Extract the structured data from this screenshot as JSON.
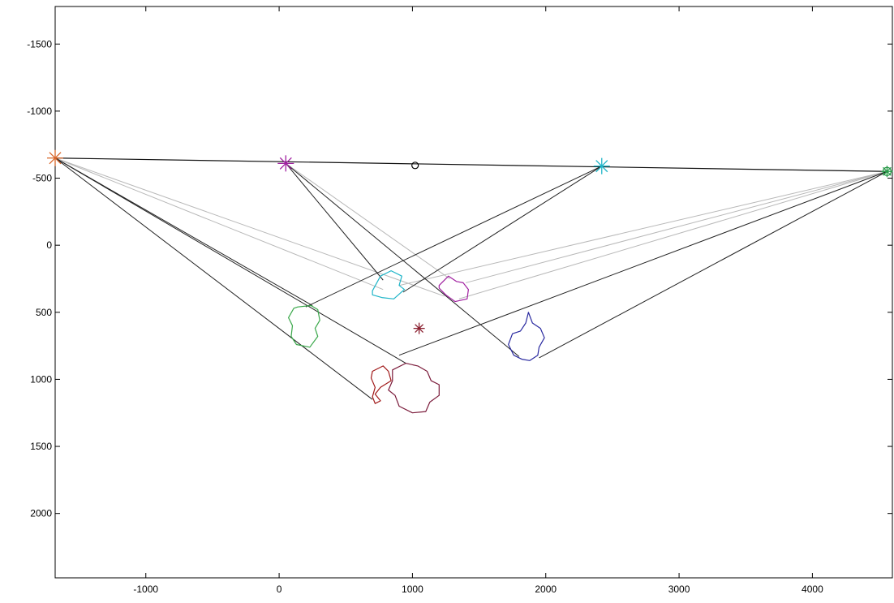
{
  "chart_data": {
    "type": "line",
    "title": "",
    "xlabel": "",
    "ylabel": "",
    "xlim": [
      -1680,
      4600
    ],
    "ylim": [
      -1780,
      2480
    ],
    "y_reversed": true,
    "grid": false,
    "legend": "none",
    "x_ticks": [
      -1000,
      0,
      1000,
      2000,
      3000,
      4000
    ],
    "y_ticks": [
      -1500,
      -1000,
      -500,
      0,
      500,
      1000,
      1500,
      2000
    ],
    "x_tick_labels": [
      "-1000",
      "0",
      "1000",
      "2000",
      "3000",
      "4000"
    ],
    "y_tick_labels": [
      "-1500",
      "-1000",
      "-500",
      "0",
      "500",
      "1000",
      "1500",
      "2000"
    ],
    "baseline": [
      [
        -1680,
        -650
      ],
      [
        4560,
        -550
      ]
    ],
    "markers": [
      {
        "name": "cam1",
        "x": -1680,
        "y": -650,
        "symbol": "star",
        "color": "#d9662a"
      },
      {
        "name": "cam2",
        "x": 50,
        "y": -610,
        "symbol": "star",
        "color": "#a020a0"
      },
      {
        "name": "cam3",
        "x": 2420,
        "y": -590,
        "symbol": "star",
        "color": "#1fb5c8"
      },
      {
        "name": "cam4",
        "x": 4560,
        "y": -550,
        "symbol": "circle-star",
        "color": "#2a9a4a"
      },
      {
        "name": "center",
        "x": 1020,
        "y": -595,
        "symbol": "circle",
        "color": "#000000"
      },
      {
        "name": "object",
        "x": 1050,
        "y": 620,
        "symbol": "star",
        "color": "#8a2030"
      }
    ],
    "silhouettes": [
      {
        "name": "green",
        "color": "#3aa84a",
        "points": [
          [
            140,
            460
          ],
          [
            240,
            450
          ],
          [
            290,
            480
          ],
          [
            305,
            560
          ],
          [
            270,
            620
          ],
          [
            290,
            680
          ],
          [
            230,
            760
          ],
          [
            130,
            740
          ],
          [
            90,
            680
          ],
          [
            100,
            600
          ],
          [
            70,
            540
          ],
          [
            110,
            470
          ]
        ]
      },
      {
        "name": "cyan",
        "color": "#1fb5c8",
        "points": [
          [
            700,
            340
          ],
          [
            760,
            230
          ],
          [
            840,
            190
          ],
          [
            920,
            230
          ],
          [
            900,
            300
          ],
          [
            940,
            330
          ],
          [
            860,
            400
          ],
          [
            770,
            390
          ],
          [
            700,
            370
          ]
        ]
      },
      {
        "name": "magenta",
        "color": "#a020a0",
        "points": [
          [
            1200,
            300
          ],
          [
            1270,
            230
          ],
          [
            1330,
            270
          ],
          [
            1380,
            280
          ],
          [
            1420,
            330
          ],
          [
            1410,
            400
          ],
          [
            1320,
            420
          ],
          [
            1250,
            370
          ],
          [
            1200,
            320
          ]
        ]
      },
      {
        "name": "blue",
        "color": "#2a2aa0",
        "points": [
          [
            1870,
            500
          ],
          [
            1900,
            580
          ],
          [
            1960,
            620
          ],
          [
            1990,
            690
          ],
          [
            1950,
            760
          ],
          [
            1940,
            820
          ],
          [
            1880,
            860
          ],
          [
            1820,
            850
          ],
          [
            1760,
            820
          ],
          [
            1720,
            740
          ],
          [
            1750,
            660
          ],
          [
            1810,
            640
          ],
          [
            1850,
            580
          ],
          [
            1870,
            500
          ]
        ]
      },
      {
        "name": "darkred",
        "color": "#a01818",
        "points": [
          [
            700,
            940
          ],
          [
            780,
            900
          ],
          [
            820,
            940
          ],
          [
            840,
            1010
          ],
          [
            760,
            1060
          ],
          [
            720,
            1110
          ],
          [
            760,
            1160
          ],
          [
            720,
            1180
          ],
          [
            700,
            1130
          ],
          [
            720,
            1060
          ],
          [
            690,
            990
          ]
        ]
      },
      {
        "name": "maroon",
        "color": "#7a1a3a",
        "points": [
          [
            850,
            930
          ],
          [
            950,
            880
          ],
          [
            1040,
            900
          ],
          [
            1110,
            940
          ],
          [
            1140,
            1010
          ],
          [
            1200,
            1040
          ],
          [
            1200,
            1120
          ],
          [
            1130,
            1170
          ],
          [
            1100,
            1240
          ],
          [
            1000,
            1250
          ],
          [
            900,
            1200
          ],
          [
            870,
            1120
          ],
          [
            820,
            1080
          ],
          [
            850,
            1010
          ],
          [
            850,
            930
          ]
        ]
      }
    ],
    "projection_lines_dark": [
      [
        [
          -1680,
          -650
        ],
        [
          250,
          450
        ]
      ],
      [
        [
          -1680,
          -650
        ],
        [
          700,
          1150
        ]
      ],
      [
        [
          -1680,
          -650
        ],
        [
          950,
          880
        ]
      ],
      [
        [
          50,
          -610
        ],
        [
          780,
          260
        ]
      ],
      [
        [
          50,
          -610
        ],
        [
          1800,
          830
        ]
      ],
      [
        [
          2420,
          -590
        ],
        [
          200,
          460
        ]
      ],
      [
        [
          2420,
          -590
        ],
        [
          930,
          350
        ]
      ],
      [
        [
          4560,
          -550
        ],
        [
          900,
          820
        ]
      ],
      [
        [
          4560,
          -550
        ],
        [
          1950,
          840
        ]
      ]
    ],
    "projection_lines_light": [
      [
        [
          -1680,
          -650
        ],
        [
          780,
          330
        ]
      ],
      [
        [
          -1680,
          -650
        ],
        [
          1240,
          380
        ]
      ],
      [
        [
          50,
          -610
        ],
        [
          1280,
          250
        ]
      ],
      [
        [
          4560,
          -550
        ],
        [
          1350,
          400
        ]
      ],
      [
        [
          4560,
          -550
        ],
        [
          1400,
          280
        ]
      ],
      [
        [
          4560,
          -550
        ],
        [
          900,
          300
        ]
      ]
    ]
  }
}
